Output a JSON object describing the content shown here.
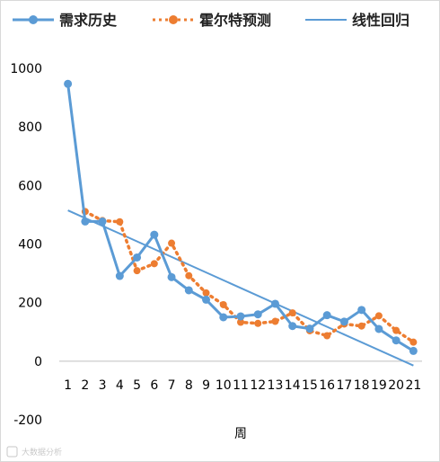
{
  "chart_data": {
    "type": "line",
    "title": "",
    "xlabel": "周",
    "ylabel": "",
    "categories": [
      "1",
      "2",
      "3",
      "4",
      "5",
      "6",
      "7",
      "8",
      "9",
      "10",
      "11",
      "12",
      "13",
      "14",
      "15",
      "16",
      "17",
      "18",
      "19",
      "20",
      "21"
    ],
    "ylim": [
      -200,
      1000
    ],
    "yticks": [
      -200,
      0,
      200,
      400,
      600,
      800,
      1000
    ],
    "grid": false,
    "legend_position": "top",
    "series": [
      {
        "name": "需求历史",
        "color": "#5b9bd5",
        "style": "solid-with-markers",
        "values": [
          947,
          477,
          477,
          291,
          354,
          432,
          287,
          242,
          210,
          150,
          153,
          160,
          196,
          120,
          111,
          157,
          135,
          175,
          110,
          71,
          35
        ]
      },
      {
        "name": "霍尔特预测",
        "color": "#ed7d31",
        "style": "dotted-with-markers",
        "values": [
          null,
          511,
          480,
          476,
          309,
          333,
          403,
          292,
          233,
          193,
          133,
          129,
          136,
          165,
          104,
          87,
          127,
          120,
          155,
          105,
          65
        ]
      },
      {
        "name": "线性回归",
        "color": "#5b9bd5",
        "style": "solid",
        "start": [
          1,
          515
        ],
        "end": [
          21,
          -15
        ]
      }
    ]
  },
  "watermark": {
    "text": "大数据分析"
  }
}
